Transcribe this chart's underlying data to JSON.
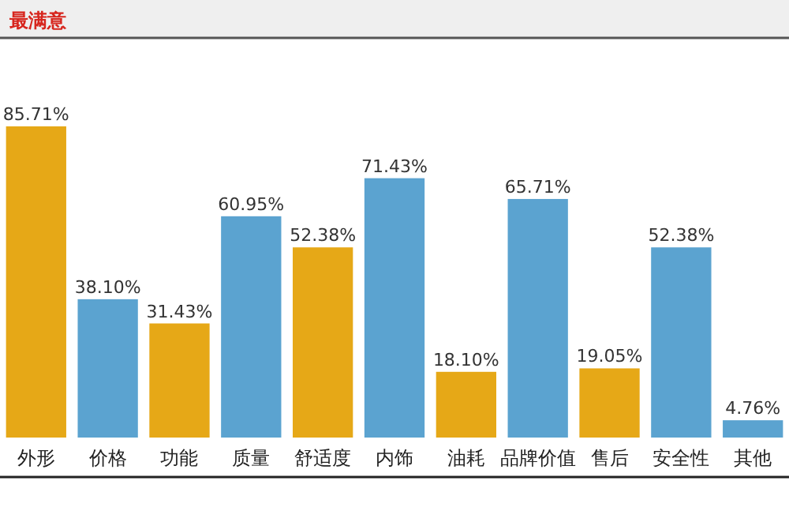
{
  "chart_data": {
    "type": "bar",
    "title": "最满意",
    "categories": [
      "外形",
      "价格",
      "功能",
      "质量",
      "舒适度",
      "内饰",
      "油耗",
      "品牌价值",
      "售后",
      "安全性",
      "其他"
    ],
    "values": [
      85.71,
      38.1,
      31.43,
      60.95,
      52.38,
      71.43,
      18.1,
      65.71,
      19.05,
      52.38,
      4.76
    ],
    "colors": [
      "#e6a817",
      "#5ba3d0",
      "#e6a817",
      "#5ba3d0",
      "#e6a817",
      "#5ba3d0",
      "#e6a817",
      "#5ba3d0",
      "#e6a817",
      "#5ba3d0",
      "#5ba3d0"
    ],
    "value_labels": [
      "85.71%",
      "38.10%",
      "31.43%",
      "60.95%",
      "52.38%",
      "71.43%",
      "18.10%",
      "65.71%",
      "19.05%",
      "52.38%",
      "4.76%"
    ]
  }
}
